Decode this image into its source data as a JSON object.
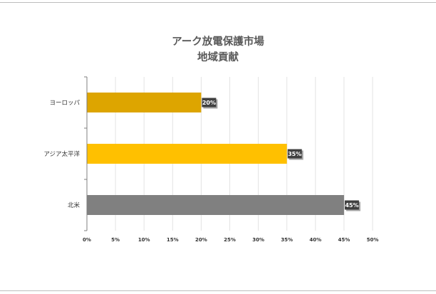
{
  "chart_data": {
    "type": "bar",
    "orientation": "horizontal",
    "title_lines": [
      "アーク放電保護市場",
      "地域貢献"
    ],
    "categories": [
      "ヨーロッパ",
      "アジア太平洋",
      "北米"
    ],
    "values": [
      20,
      35,
      45
    ],
    "data_labels": [
      "20%",
      "35%",
      "45%"
    ],
    "colors": [
      "#DDA500",
      "#FFC000",
      "#808080"
    ],
    "xlim": [
      0,
      50
    ],
    "x_ticks": [
      "0%",
      "5%",
      "10%",
      "15%",
      "20%",
      "25%",
      "30%",
      "35%",
      "40%",
      "45%",
      "50%"
    ],
    "grid": true,
    "legend": "none"
  }
}
